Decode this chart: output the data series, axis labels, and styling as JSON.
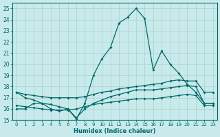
{
  "title": "",
  "xlabel": "Humidex (Indice chaleur)",
  "ylabel": "",
  "background_color": "#c8eaea",
  "grid_color": "#aad0d0",
  "line_color": "#006868",
  "xlim": [
    -0.5,
    23.5
  ],
  "ylim": [
    15,
    25.5
  ],
  "yticks": [
    15,
    16,
    17,
    18,
    19,
    20,
    21,
    22,
    23,
    24,
    25
  ],
  "xticks": [
    0,
    1,
    2,
    3,
    4,
    5,
    6,
    7,
    8,
    9,
    10,
    11,
    12,
    13,
    14,
    15,
    16,
    17,
    18,
    19,
    20,
    21,
    22,
    23
  ],
  "line1_x": [
    0,
    1,
    2,
    3,
    4,
    5,
    6,
    7,
    8,
    9,
    10,
    11,
    12,
    13,
    14,
    15,
    16,
    17,
    18,
    19,
    20,
    21,
    22,
    23
  ],
  "line1_y": [
    17.5,
    17.0,
    16.8,
    16.5,
    16.0,
    15.8,
    16.0,
    15.1,
    16.5,
    19.0,
    20.5,
    21.5,
    23.7,
    24.2,
    25.0,
    24.1,
    19.5,
    21.2,
    20.0,
    19.2,
    18.2,
    17.5,
    16.5,
    16.5
  ],
  "line2_x": [
    0,
    1,
    2,
    3,
    4,
    5,
    6,
    7,
    8,
    9,
    10,
    11,
    12,
    13,
    14,
    15,
    16,
    17,
    18,
    19,
    20,
    21,
    22,
    23
  ],
  "line2_y": [
    17.5,
    17.3,
    17.2,
    17.1,
    17.0,
    17.0,
    17.0,
    17.0,
    17.1,
    17.3,
    17.5,
    17.6,
    17.8,
    17.9,
    18.0,
    18.1,
    18.2,
    18.3,
    18.5,
    18.6,
    18.5,
    18.5,
    17.5,
    17.5
  ],
  "line3_x": [
    0,
    1,
    2,
    3,
    4,
    5,
    6,
    7,
    8,
    9,
    10,
    11,
    12,
    13,
    14,
    15,
    16,
    17,
    18,
    19,
    20,
    21,
    22,
    23
  ],
  "line3_y": [
    16.3,
    16.2,
    16.1,
    16.0,
    15.9,
    15.9,
    15.9,
    16.0,
    16.2,
    16.4,
    16.5,
    16.6,
    16.7,
    16.8,
    16.9,
    16.9,
    16.9,
    17.0,
    17.1,
    17.2,
    17.3,
    17.2,
    16.3,
    16.3
  ],
  "line4_x": [
    0,
    1,
    2,
    3,
    4,
    5,
    6,
    7,
    8,
    9,
    10,
    11,
    12,
    13,
    14,
    15,
    16,
    17,
    18,
    19,
    20,
    21,
    22,
    23
  ],
  "line4_y": [
    16.0,
    16.0,
    16.5,
    16.5,
    16.4,
    16.2,
    16.0,
    15.2,
    16.0,
    16.5,
    16.8,
    17.1,
    17.3,
    17.5,
    17.7,
    17.7,
    17.7,
    17.8,
    17.9,
    18.0,
    18.1,
    18.0,
    16.5,
    16.5
  ]
}
